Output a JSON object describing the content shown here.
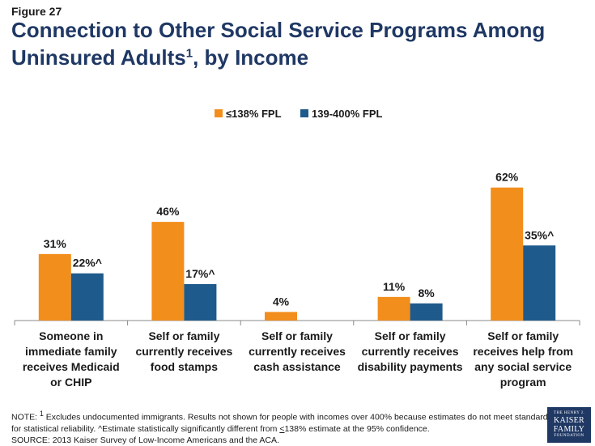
{
  "figure_label": "Figure 27",
  "title_line1": "Connection to Other Social Service Programs Among",
  "title_line2_main": "Uninsured Adults",
  "title_sup": "1",
  "title_line2_end": ", by Income",
  "chart_data": {
    "type": "bar",
    "categories": [
      [
        "Someone in",
        "immediate family",
        "receives Medicaid",
        "or CHIP"
      ],
      [
        "Self or family",
        "currently receives",
        "food stamps"
      ],
      [
        "Self or family",
        "currently receives",
        "cash assistance"
      ],
      [
        "Self or family",
        "currently receives",
        "disability payments"
      ],
      [
        "Self or family",
        "receives help from",
        "any social service",
        "program"
      ]
    ],
    "series": [
      {
        "name": "≤138% FPL",
        "color": "#f28e1c",
        "values": [
          31,
          46,
          4,
          11,
          62
        ],
        "labels": [
          "31%",
          "46%",
          "4%",
          "11%",
          "62%"
        ]
      },
      {
        "name": "139-400% FPL",
        "color": "#1f5a8c",
        "values": [
          22,
          17,
          null,
          8,
          35
        ],
        "labels": [
          "22%^",
          "17%^",
          "",
          "8%",
          "35%^"
        ]
      }
    ],
    "ylim": [
      0,
      70
    ],
    "legend_position": "top-center",
    "title": "",
    "xlabel": "",
    "ylabel": ""
  },
  "note": {
    "prefix": "NOTE: ",
    "sup": "1",
    "text1": " Excludes undocumented immigrants.  Results not shown for people with incomes over 400% because estimates do not meet standards for statistical reliability. ^Estimate statistically significantly different from ",
    "le_text": "<",
    "text2": "138% estimate at the 95% confidence.",
    "source": "SOURCE: 2013 Kaiser Survey of Low-Income Americans and the ACA."
  },
  "logo": {
    "line1": "THE HENRY J.",
    "line2": "KAISER",
    "line3": "FAMILY",
    "line4": "FOUNDATION"
  }
}
